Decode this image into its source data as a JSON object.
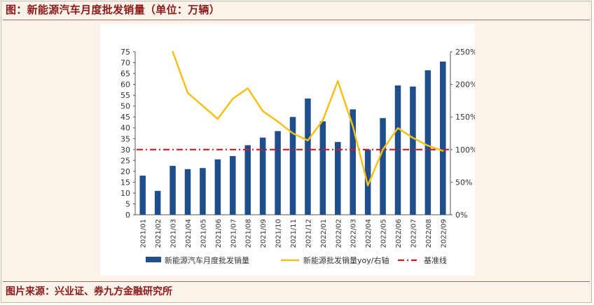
{
  "caption": "图：新能源汽车月度批发销量（单位：万辆）",
  "source": "图片来源：兴业证、券九方金融研究所",
  "chart_data": {
    "type": "bar",
    "title": "新能源汽车月度批发销量（单位：万辆）",
    "categories": [
      "2021/01",
      "2021/02",
      "2021/03",
      "2021/04",
      "2021/05",
      "2021/06",
      "2021/07",
      "2021/08",
      "2021/09",
      "2021/10",
      "2021/11",
      "2021/12",
      "2022/01",
      "2022/02",
      "2022/03",
      "2022/04",
      "2022/05",
      "2022/06",
      "2022/07",
      "2022/08",
      "2022/09"
    ],
    "series": [
      {
        "name": "新能源汽车月度批发销量",
        "type": "bar",
        "axis": "left",
        "color": "#1f4e8c",
        "values": [
          18,
          11,
          22.5,
          21,
          21.5,
          25.5,
          27,
          32,
          35.5,
          38.5,
          45,
          53.5,
          43,
          33.5,
          48.5,
          30,
          44.5,
          59.5,
          59,
          66.5,
          70.5
        ]
      },
      {
        "name": "新能源批发销量yoy/右轴",
        "type": "line",
        "axis": "right",
        "color": "#f4c017",
        "values_pct": [
          null,
          null,
          250,
          187,
          167,
          147,
          178,
          194,
          159,
          143,
          125,
          114,
          145,
          205,
          136,
          45,
          100,
          133,
          118,
          106,
          98
        ]
      },
      {
        "name": "基准线",
        "type": "reference",
        "axis": "left",
        "color": "#d71920",
        "value": 30
      }
    ],
    "y_left": {
      "min": 0,
      "max": 75,
      "step": 5,
      "ticks": [
        "0",
        "5",
        "10",
        "15",
        "20",
        "25",
        "30",
        "35",
        "40",
        "45",
        "50",
        "55",
        "60",
        "65",
        "70",
        "75"
      ]
    },
    "y_right": {
      "min": 0,
      "max": 250,
      "step": 50,
      "ticks": [
        "0%",
        "50%",
        "100%",
        "150%",
        "200%",
        "250%"
      ]
    },
    "xlabel": "",
    "ylabel": "",
    "legend_position": "bottom"
  }
}
